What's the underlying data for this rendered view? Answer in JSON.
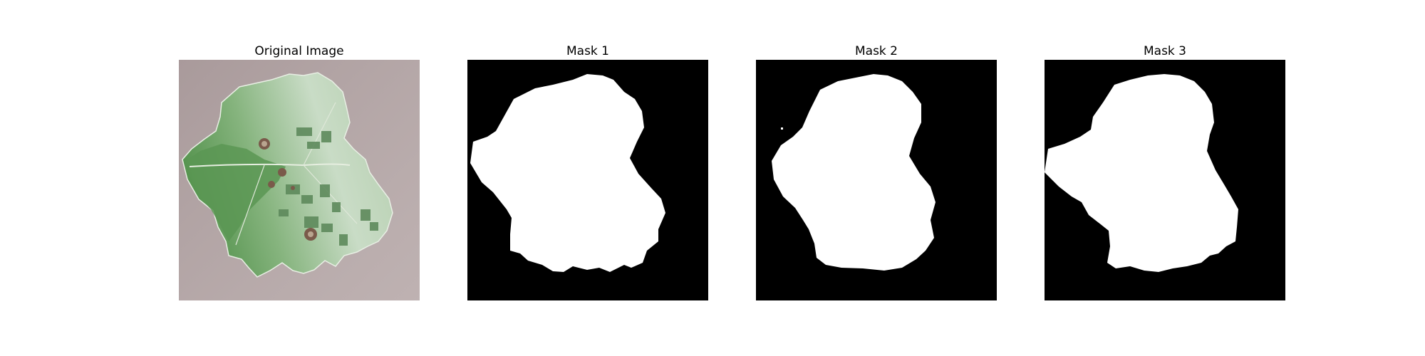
{
  "figure": {
    "panels": [
      {
        "title": "Original Image",
        "kind": "photo"
      },
      {
        "title": "Mask 1",
        "kind": "mask"
      },
      {
        "title": "Mask 2",
        "kind": "mask"
      },
      {
        "title": "Mask 3",
        "kind": "mask"
      }
    ]
  },
  "colors": {
    "photo_background": "#b3a6a6",
    "leaf_light": "#c8d9c4",
    "leaf_dark": "#5e8f5a",
    "leaf_mid": "#83b07a",
    "lesion": "#7a5a4a",
    "mask_background": "#000000",
    "mask_foreground": "#ffffff"
  }
}
